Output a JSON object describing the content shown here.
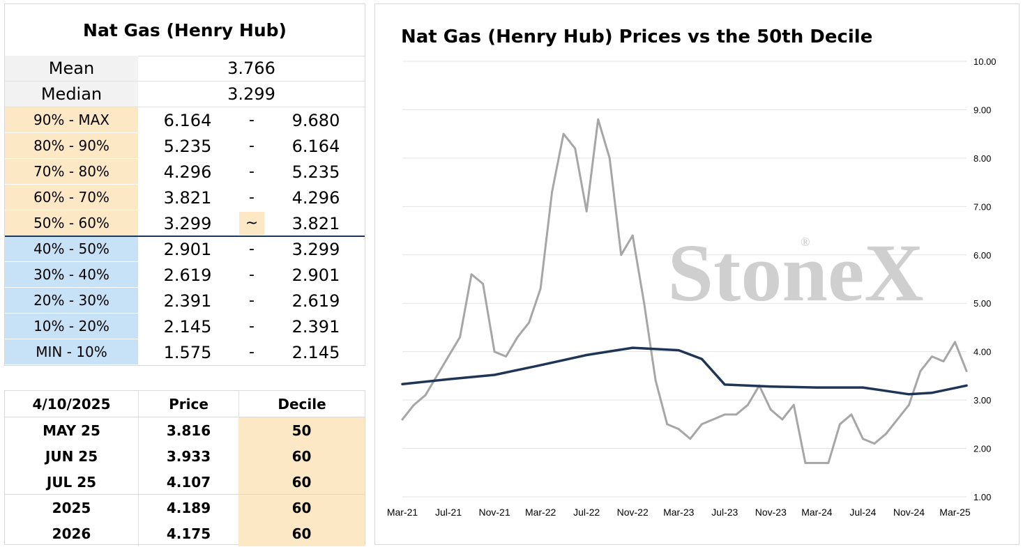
{
  "table": {
    "title": "Nat Gas (Henry Hub)",
    "mean_label": "Mean",
    "mean_value": "3.766",
    "median_label": "Median",
    "median_value": "3.299",
    "dash": "-",
    "current_marker": "~",
    "deciles": [
      {
        "label": "90% - MAX",
        "low": "6.164",
        "high": "9.680",
        "color": "#fde8c5"
      },
      {
        "label": "80% - 90%",
        "low": "5.235",
        "high": "6.164",
        "color": "#fde8c5"
      },
      {
        "label": "70% - 80%",
        "low": "4.296",
        "high": "5.235",
        "color": "#fde8c5"
      },
      {
        "label": "60% - 70%",
        "low": "3.821",
        "high": "4.296",
        "color": "#fde8c5"
      },
      {
        "label": "50% - 60%",
        "low": "3.299",
        "high": "3.821",
        "color": "#fde8c5"
      },
      {
        "label": "40% - 50%",
        "low": "2.901",
        "high": "3.299",
        "color": "#c7e1f7"
      },
      {
        "label": "30% - 40%",
        "low": "2.619",
        "high": "2.901",
        "color": "#c7e1f7"
      },
      {
        "label": "20% - 30%",
        "low": "2.391",
        "high": "2.619",
        "color": "#c7e1f7"
      },
      {
        "label": "10% - 20%",
        "low": "2.145",
        "high": "2.391",
        "color": "#c7e1f7"
      },
      {
        "label": "MIN - 10%",
        "low": "1.575",
        "high": "2.145",
        "color": "#c7e1f7"
      }
    ]
  },
  "contracts": {
    "header": {
      "date": "4/10/2025",
      "price": "Price",
      "decile": "Decile"
    },
    "rows": [
      {
        "name": "MAY 25",
        "price": "3.816",
        "decile": "50"
      },
      {
        "name": "JUN 25",
        "price": "3.933",
        "decile": "60"
      },
      {
        "name": "JUL 25",
        "price": "4.107",
        "decile": "60"
      },
      {
        "name": "2025",
        "price": "4.189",
        "decile": "60"
      },
      {
        "name": "2026",
        "price": "4.175",
        "decile": "60"
      }
    ]
  },
  "chart_data": {
    "type": "line",
    "title": "Nat Gas (Henry Hub) Prices vs the 50th Decile",
    "watermark": "StoneX",
    "watermark_mark": "®",
    "xlabel": "",
    "ylabel": "",
    "ylim": [
      1.0,
      10.0
    ],
    "yticks": [
      "1.00",
      "2.00",
      "3.00",
      "4.00",
      "5.00",
      "6.00",
      "7.00",
      "8.00",
      "9.00",
      "10.00"
    ],
    "xticks": [
      "Mar-21",
      "Jul-21",
      "Nov-21",
      "Mar-22",
      "Jul-22",
      "Nov-22",
      "Mar-23",
      "Jul-23",
      "Nov-23",
      "Mar-24",
      "Jul-24",
      "Nov-24",
      "Mar-25"
    ],
    "grid": true,
    "y_axis_side": "right",
    "colors": {
      "price": "#a6a6a6",
      "decile": "#1f3556"
    },
    "series": [
      {
        "name": "",
        "x": [
          "2021-03",
          "2021-04",
          "2021-05",
          "2021-06",
          "2021-07",
          "2021-08",
          "2021-09",
          "2021-10",
          "2021-11",
          "2021-12",
          "2022-01",
          "2022-02",
          "2022-03",
          "2022-04",
          "2022-05",
          "2022-06",
          "2022-07",
          "2022-08",
          "2022-09",
          "2022-10",
          "2022-11",
          "2022-12",
          "2023-01",
          "2023-02",
          "2023-03",
          "2023-04",
          "2023-05",
          "2023-06",
          "2023-07",
          "2023-08",
          "2023-09",
          "2023-10",
          "2023-11",
          "2023-12",
          "2024-01",
          "2024-02",
          "2024-03",
          "2024-04",
          "2024-05",
          "2024-06",
          "2024-07",
          "2024-08",
          "2024-09",
          "2024-10",
          "2024-11",
          "2024-12",
          "2025-01",
          "2025-02",
          "2025-03",
          "2025-04"
        ],
        "values": [
          2.6,
          2.9,
          3.1,
          3.5,
          3.9,
          4.3,
          5.6,
          5.4,
          4.0,
          3.9,
          4.3,
          4.6,
          5.3,
          7.3,
          8.5,
          8.2,
          6.9,
          8.8,
          8.0,
          6.0,
          6.4,
          5.0,
          3.4,
          2.5,
          2.4,
          2.2,
          2.5,
          2.6,
          2.7,
          2.7,
          2.9,
          3.3,
          2.8,
          2.6,
          2.9,
          1.7,
          1.7,
          1.7,
          2.5,
          2.7,
          2.2,
          2.1,
          2.3,
          2.6,
          2.9,
          3.6,
          3.9,
          3.8,
          4.2,
          3.6
        ]
      },
      {
        "name": "",
        "x": [
          "2021-03",
          "2021-07",
          "2021-11",
          "2022-03",
          "2022-07",
          "2022-11",
          "2023-03",
          "2023-05",
          "2023-07",
          "2023-11",
          "2024-03",
          "2024-07",
          "2024-11",
          "2025-01",
          "2025-03",
          "2025-04"
        ],
        "values": [
          3.33,
          3.43,
          3.52,
          3.72,
          3.93,
          4.08,
          4.03,
          3.85,
          3.32,
          3.28,
          3.26,
          3.26,
          3.12,
          3.15,
          3.25,
          3.3
        ]
      }
    ]
  }
}
